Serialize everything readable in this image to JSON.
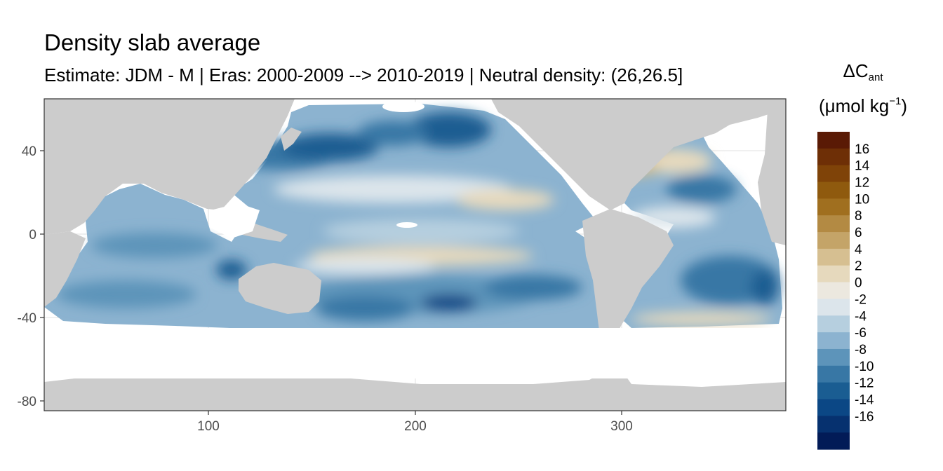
{
  "chart_data": {
    "type": "heatmap",
    "title": "Density slab average",
    "subtitle": "Estimate: JDM - M | Eras: 2000-2009 --> 2010-2019 | Neutral density: (26,26.5]",
    "legend": {
      "title_main": "ΔC",
      "title_sub": "ant",
      "unit_pre": "(μmol kg",
      "unit_sup": "−1",
      "unit_post": ")",
      "placement": "right",
      "breaks": [
        "16",
        "14",
        "12",
        "10",
        "8",
        "6",
        "4",
        "2",
        "0",
        "-2",
        "-4",
        "-6",
        "-8",
        "-10",
        "-12",
        "-14",
        "-16"
      ],
      "colors": [
        "#5a1a05",
        "#6e2f06",
        "#7f4308",
        "#8f5a0e",
        "#a06f1f",
        "#b38a43",
        "#c4a468",
        "#d6bf91",
        "#e6d9bd",
        "#ece8df",
        "#dce5eb",
        "#b6cfdf",
        "#8cb3d0",
        "#5d94ba",
        "#3877a5",
        "#1a5d92",
        "#0b4785",
        "#06316f",
        "#021b57"
      ],
      "range": [
        -18,
        18
      ]
    },
    "x_axis": {
      "ticks": [
        100,
        200,
        300
      ],
      "range": [
        20,
        380
      ]
    },
    "y_axis": {
      "ticks": [
        40,
        0,
        -40,
        -80
      ],
      "range": [
        -85,
        65
      ]
    },
    "grid": true,
    "field_description_values": {
      "north_pacific_subpolar": -9,
      "north_pacific_subtropical": -4,
      "north_atlantic_subtropical": 3,
      "south_pacific": -6,
      "south_atlantic": -7,
      "indian_ocean": -5,
      "equatorial_pacific_east": 1
    }
  }
}
